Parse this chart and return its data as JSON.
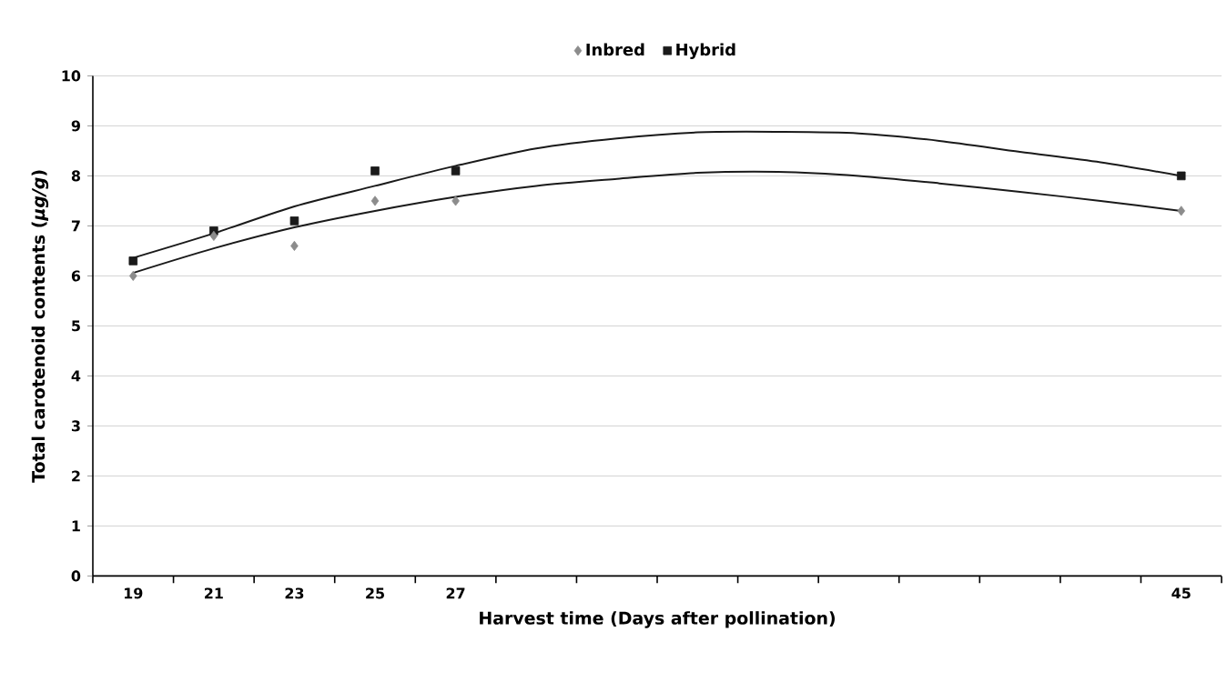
{
  "chart_data": {
    "type": "scatter",
    "xlabel": "Harvest time (Days after pollination)",
    "ylabel": "Total carotenoid contents (*μg/g*)",
    "categories": [
      "19",
      "21",
      "23",
      "25",
      "27",
      null,
      null,
      null,
      null,
      null,
      null,
      null,
      null,
      "45"
    ],
    "ylim": [
      0,
      10
    ],
    "yticks": [
      0,
      1,
      2,
      3,
      4,
      5,
      6,
      7,
      8,
      9,
      10
    ],
    "grid": "y",
    "legend": "top",
    "series": [
      {
        "name": "Inbred",
        "marker": "diamond",
        "color": "#8c8c8c",
        "values": [
          6.0,
          6.8,
          6.6,
          7.5,
          7.5,
          null,
          null,
          null,
          null,
          null,
          null,
          null,
          null,
          7.3
        ]
      },
      {
        "name": "Hybrid",
        "marker": "square",
        "color": "#1a1a1a",
        "values": [
          6.3,
          6.9,
          7.1,
          8.1,
          8.1,
          null,
          null,
          null,
          null,
          null,
          null,
          null,
          null,
          8.0
        ]
      },
      {
        "type": "line",
        "color": "#1a1a1a",
        "values": [
          6.06,
          6.55,
          6.97,
          7.3,
          7.58,
          7.8,
          7.94,
          8.06,
          8.08,
          8.0,
          7.85,
          7.68,
          7.5,
          7.3
        ]
      },
      {
        "type": "line",
        "color": "#1a1a1a",
        "values": [
          6.36,
          6.85,
          7.39,
          7.8,
          8.2,
          8.55,
          8.75,
          8.87,
          8.88,
          8.85,
          8.7,
          8.48,
          8.27,
          8.0
        ]
      }
    ]
  }
}
